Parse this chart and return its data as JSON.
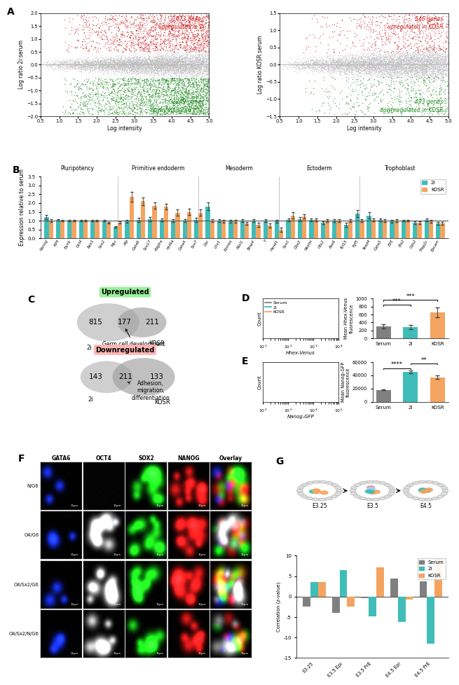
{
  "colors": {
    "serum": "#808080",
    "2i": "#40BDB8",
    "kosr": "#F4A460",
    "red_dots": "#CC2222",
    "green_dots": "#228B22",
    "gray_dots": "#BBBBBB",
    "upregulated_box": "#90EE90",
    "downregulated_box": "#FFB6B6"
  },
  "panel_B": {
    "categories": [
      "Nanog",
      "Klf4",
      "Esrrb",
      "Oct4",
      "Rex1",
      "Sox2",
      "Myc",
      "Afp",
      "Gata6",
      "Sox17",
      "Pdgfra",
      "Hnf4a",
      "Gata4",
      "Sox7",
      "Gsc",
      "Lhx1",
      "Eomes",
      "Mixl1",
      "Bmp4",
      "T",
      "Hand1",
      "Sox1",
      "Gbx2",
      "Nestin",
      "Otx2",
      "Pax6",
      "Tcf15",
      "Fgf5",
      "Tead4",
      "Gata3",
      "Elf5",
      "Ets2",
      "Cdx2",
      "Tfap2c",
      "Epcam"
    ],
    "group_labels": [
      "Pluripotency",
      "Primitive endoderm",
      "Mesoderm",
      "Ectoderm",
      "Trophoblast"
    ],
    "group_ranges": [
      [
        0,
        6
      ],
      [
        7,
        13
      ],
      [
        14,
        20
      ],
      [
        21,
        27
      ],
      [
        28,
        34
      ]
    ],
    "values_2i": [
      1.2,
      1.05,
      1.0,
      1.0,
      1.0,
      1.0,
      0.65,
      0.95,
      1.05,
      1.1,
      1.05,
      1.0,
      1.0,
      1.05,
      1.8,
      1.0,
      0.95,
      1.0,
      1.0,
      1.0,
      0.95,
      1.05,
      1.1,
      1.05,
      0.9,
      1.0,
      0.75,
      1.4,
      1.3,
      1.05,
      0.95,
      1.0,
      0.9,
      1.05,
      0.85
    ],
    "values_kosr": [
      1.0,
      1.0,
      1.0,
      1.0,
      1.0,
      0.9,
      0.9,
      2.35,
      2.1,
      1.85,
      1.8,
      1.45,
      1.5,
      1.45,
      1.0,
      0.95,
      0.95,
      0.85,
      0.78,
      0.72,
      0.5,
      1.3,
      1.25,
      1.05,
      1.0,
      1.0,
      1.0,
      1.0,
      1.05,
      1.0,
      1.0,
      1.0,
      0.9,
      0.95,
      0.85
    ],
    "err_2i": [
      0.12,
      0.04,
      0.04,
      0.03,
      0.04,
      0.04,
      0.05,
      0.08,
      0.12,
      0.12,
      0.08,
      0.08,
      0.08,
      0.12,
      0.22,
      0.08,
      0.08,
      0.08,
      0.08,
      0.08,
      0.08,
      0.08,
      0.12,
      0.08,
      0.08,
      0.08,
      0.12,
      0.18,
      0.18,
      0.08,
      0.08,
      0.04,
      0.08,
      0.08,
      0.08
    ],
    "err_kosr": [
      0.08,
      0.04,
      0.04,
      0.03,
      0.04,
      0.04,
      0.05,
      0.28,
      0.22,
      0.18,
      0.15,
      0.18,
      0.18,
      0.18,
      0.08,
      0.08,
      0.08,
      0.08,
      0.12,
      0.12,
      0.12,
      0.18,
      0.12,
      0.08,
      0.08,
      0.08,
      0.08,
      0.08,
      0.08,
      0.08,
      0.08,
      0.04,
      0.08,
      0.08,
      0.08
    ],
    "ylim": [
      0.0,
      3.5
    ],
    "yticks": [
      0.0,
      0.5,
      1.0,
      1.5,
      2.0,
      2.5,
      3.0,
      3.5
    ],
    "ylabel": "Expression relative to serum"
  },
  "panel_D_bar": {
    "categories": [
      "Serum",
      "2i",
      "KOSR"
    ],
    "values": [
      300,
      280,
      650
    ],
    "errors": [
      50,
      55,
      120
    ],
    "ylabel": "Mean Hhex-Venus\nfluorescence",
    "ylim": [
      0,
      1000
    ],
    "yticks": [
      0,
      200,
      400,
      600,
      800,
      1000
    ]
  },
  "panel_E_bar": {
    "categories": [
      "Serum",
      "2i",
      "KOSR"
    ],
    "values": [
      18000,
      45000,
      37000
    ],
    "errors": [
      400,
      1800,
      2800
    ],
    "ylabel": "Mean Nanog-GFP\nfluorescence",
    "ylim": [
      0,
      60000
    ],
    "yticks": [
      0,
      20000,
      40000,
      60000
    ]
  },
  "panel_G_bar": {
    "categories": [
      "E3.25",
      "E3.5 Epi",
      "E3.5 PrE",
      "E4.5 Epi",
      "E4.5 PrE"
    ],
    "serum": [
      -2.5,
      -4.0,
      -0.3,
      4.5,
      3.8
    ],
    "vals_2i": [
      3.5,
      6.5,
      -4.8,
      -6.2,
      -11.5
    ],
    "kosr": [
      3.5,
      -2.5,
      7.2,
      -0.8,
      9.2
    ],
    "ylabel": "Correlation (z-value)",
    "ylim": [
      -15,
      10
    ],
    "yticks": [
      -15,
      -10,
      -5,
      0,
      5,
      10
    ]
  }
}
